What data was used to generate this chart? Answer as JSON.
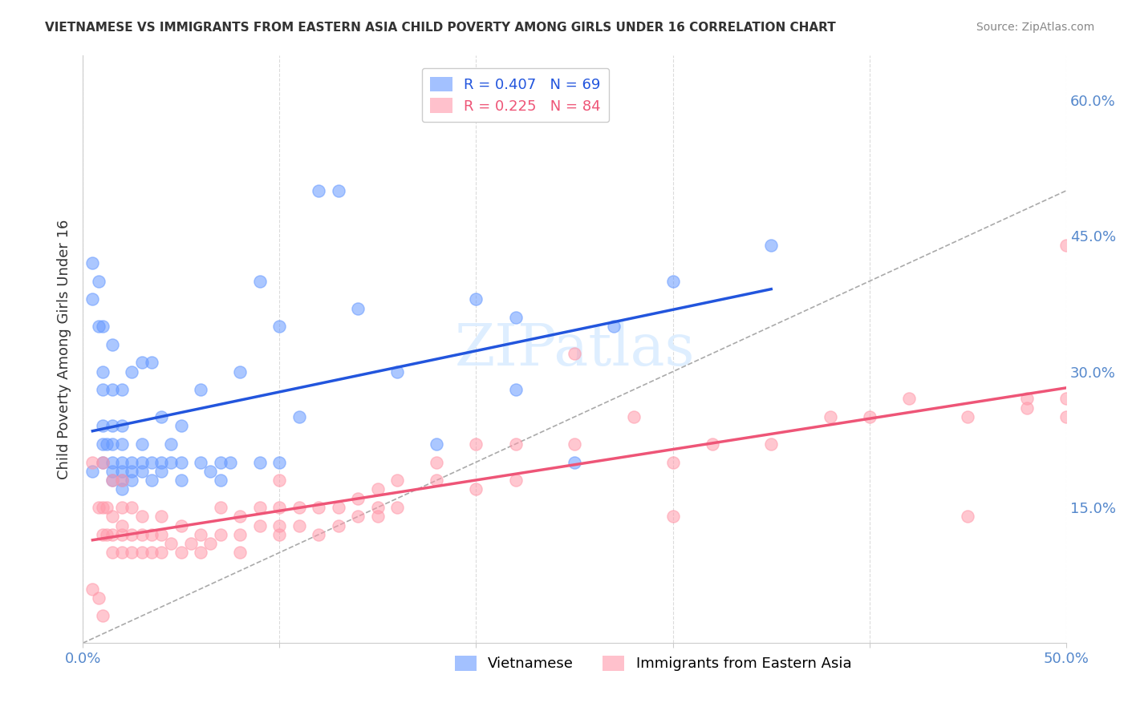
{
  "title": "VIETNAMESE VS IMMIGRANTS FROM EASTERN ASIA CHILD POVERTY AMONG GIRLS UNDER 16 CORRELATION CHART",
  "source": "Source: ZipAtlas.com",
  "ylabel": "Child Poverty Among Girls Under 16",
  "xlim": [
    0.0,
    0.5
  ],
  "ylim": [
    0.0,
    0.65
  ],
  "xticks": [
    0.0,
    0.1,
    0.2,
    0.3,
    0.4,
    0.5
  ],
  "xtick_labels": [
    "0.0%",
    "",
    "",
    "",
    "",
    "50.0%"
  ],
  "yticks_right": [
    0.15,
    0.3,
    0.45,
    0.6
  ],
  "ytick_labels_right": [
    "15.0%",
    "30.0%",
    "45.0%",
    "60.0%"
  ],
  "blue_color": "#6699FF",
  "pink_color": "#FF99AA",
  "blue_line_color": "#2255DD",
  "pink_line_color": "#EE5577",
  "blue_R": 0.407,
  "blue_N": 69,
  "pink_R": 0.225,
  "pink_N": 84,
  "watermark": "ZIPatlas",
  "background_color": "#FFFFFF",
  "grid_color": "#CCCCCC",
  "legend_label_blue": "Vietnamese",
  "legend_label_pink": "Immigrants from Eastern Asia",
  "tick_color": "#5588CC",
  "label_color": "#333333",
  "source_color": "#888888",
  "diag_color": "#AAAAAA",
  "blue_scatter_x": [
    0.01,
    0.01,
    0.01,
    0.01,
    0.01,
    0.015,
    0.015,
    0.015,
    0.015,
    0.015,
    0.015,
    0.02,
    0.02,
    0.02,
    0.02,
    0.02,
    0.02,
    0.025,
    0.025,
    0.025,
    0.025,
    0.03,
    0.03,
    0.03,
    0.03,
    0.035,
    0.035,
    0.035,
    0.04,
    0.04,
    0.04,
    0.045,
    0.045,
    0.05,
    0.05,
    0.05,
    0.06,
    0.06,
    0.065,
    0.07,
    0.07,
    0.075,
    0.08,
    0.09,
    0.09,
    0.1,
    0.1,
    0.11,
    0.12,
    0.13,
    0.14,
    0.16,
    0.18,
    0.2,
    0.22,
    0.22,
    0.25,
    0.27,
    0.3,
    0.35,
    0.005,
    0.005,
    0.005,
    0.008,
    0.008,
    0.01,
    0.012,
    0.015,
    0.02
  ],
  "blue_scatter_y": [
    0.2,
    0.22,
    0.24,
    0.28,
    0.3,
    0.18,
    0.19,
    0.2,
    0.22,
    0.24,
    0.28,
    0.17,
    0.18,
    0.19,
    0.2,
    0.22,
    0.24,
    0.18,
    0.19,
    0.2,
    0.3,
    0.19,
    0.2,
    0.22,
    0.31,
    0.18,
    0.2,
    0.31,
    0.19,
    0.2,
    0.25,
    0.2,
    0.22,
    0.18,
    0.2,
    0.24,
    0.2,
    0.28,
    0.19,
    0.18,
    0.2,
    0.2,
    0.3,
    0.2,
    0.4,
    0.2,
    0.35,
    0.25,
    0.5,
    0.5,
    0.37,
    0.3,
    0.22,
    0.38,
    0.28,
    0.36,
    0.2,
    0.35,
    0.4,
    0.44,
    0.38,
    0.42,
    0.19,
    0.35,
    0.4,
    0.35,
    0.22,
    0.33,
    0.28
  ],
  "pink_scatter_x": [
    0.005,
    0.008,
    0.01,
    0.01,
    0.01,
    0.012,
    0.012,
    0.015,
    0.015,
    0.015,
    0.015,
    0.02,
    0.02,
    0.02,
    0.02,
    0.02,
    0.025,
    0.025,
    0.025,
    0.03,
    0.03,
    0.03,
    0.035,
    0.035,
    0.04,
    0.04,
    0.04,
    0.045,
    0.05,
    0.05,
    0.055,
    0.06,
    0.06,
    0.065,
    0.07,
    0.07,
    0.08,
    0.08,
    0.08,
    0.09,
    0.09,
    0.1,
    0.1,
    0.1,
    0.1,
    0.11,
    0.11,
    0.12,
    0.12,
    0.13,
    0.13,
    0.14,
    0.14,
    0.15,
    0.15,
    0.15,
    0.16,
    0.16,
    0.18,
    0.18,
    0.2,
    0.2,
    0.22,
    0.22,
    0.25,
    0.28,
    0.3,
    0.32,
    0.35,
    0.38,
    0.4,
    0.42,
    0.45,
    0.48,
    0.5,
    0.5,
    0.5,
    0.005,
    0.25,
    0.008,
    0.01,
    0.3,
    0.45,
    0.48
  ],
  "pink_scatter_y": [
    0.2,
    0.15,
    0.12,
    0.15,
    0.2,
    0.12,
    0.15,
    0.1,
    0.12,
    0.14,
    0.18,
    0.1,
    0.12,
    0.13,
    0.15,
    0.18,
    0.1,
    0.12,
    0.15,
    0.1,
    0.12,
    0.14,
    0.1,
    0.12,
    0.1,
    0.12,
    0.14,
    0.11,
    0.1,
    0.13,
    0.11,
    0.1,
    0.12,
    0.11,
    0.12,
    0.15,
    0.1,
    0.12,
    0.14,
    0.13,
    0.15,
    0.12,
    0.13,
    0.15,
    0.18,
    0.13,
    0.15,
    0.12,
    0.15,
    0.13,
    0.15,
    0.14,
    0.16,
    0.14,
    0.15,
    0.17,
    0.15,
    0.18,
    0.18,
    0.2,
    0.17,
    0.22,
    0.18,
    0.22,
    0.22,
    0.25,
    0.2,
    0.22,
    0.22,
    0.25,
    0.25,
    0.27,
    0.25,
    0.27,
    0.25,
    0.27,
    0.44,
    0.06,
    0.32,
    0.05,
    0.03,
    0.14,
    0.14,
    0.26
  ]
}
